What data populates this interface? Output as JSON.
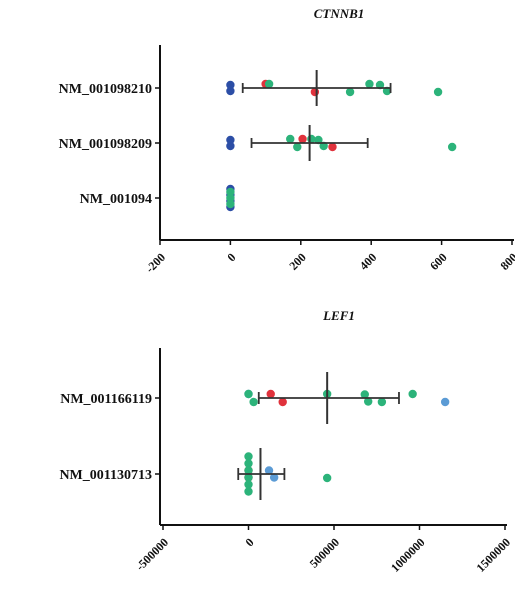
{
  "chart_data": [
    {
      "type": "scatter",
      "title": "CTNNB1",
      "xlabel": "",
      "ylabel": "",
      "xlim": [
        -200,
        800
      ],
      "xticks": [
        "-200",
        "0",
        "200",
        "400",
        "600",
        "800"
      ],
      "categories": [
        "NM_001098210",
        "NM_001098209",
        "NM_001094"
      ],
      "summary": [
        {
          "category": "NM_001098210",
          "mean": 245,
          "low": 35,
          "high": 455
        },
        {
          "category": "NM_001098209",
          "mean": 225,
          "low": 60,
          "high": 390
        }
      ],
      "groups": [
        {
          "color": "#2c4ea6",
          "points": [
            [
              "NM_001098210",
              0
            ],
            [
              "NM_001098210",
              0
            ],
            [
              "NM_001098209",
              0
            ],
            [
              "NM_001098209",
              0
            ],
            [
              "NM_001094",
              0
            ],
            [
              "NM_001094",
              0
            ],
            [
              "NM_001094",
              0
            ],
            [
              "NM_001094",
              0
            ]
          ]
        },
        {
          "color": "#e0323c",
          "points": [
            [
              "NM_001098210",
              100
            ],
            [
              "NM_001098210",
              240
            ],
            [
              "NM_001098209",
              205
            ],
            [
              "NM_001098209",
              290
            ]
          ]
        },
        {
          "color": "#2cb37a",
          "points": [
            [
              "NM_001098210",
              110
            ],
            [
              "NM_001098210",
              340
            ],
            [
              "NM_001098210",
              395
            ],
            [
              "NM_001098210",
              425
            ],
            [
              "NM_001098210",
              445
            ],
            [
              "NM_001098210",
              590
            ],
            [
              "NM_001098209",
              170
            ],
            [
              "NM_001098209",
              190
            ],
            [
              "NM_001098209",
              230
            ],
            [
              "NM_001098209",
              250
            ],
            [
              "NM_001098209",
              265
            ],
            [
              "NM_001098209",
              630
            ],
            [
              "NM_001094",
              0
            ],
            [
              "NM_001094",
              0
            ],
            [
              "NM_001094",
              0
            ]
          ]
        }
      ]
    },
    {
      "type": "scatter",
      "title": "LEF1",
      "xlabel": "",
      "ylabel": "",
      "xlim": [
        -500000,
        1500000
      ],
      "xticks": [
        "-500000",
        "0",
        "500000",
        "1000000",
        "1500000"
      ],
      "categories": [
        "NM_001166119",
        "NM_001130713"
      ],
      "summary": [
        {
          "category": "NM_001166119",
          "mean": 460000,
          "low": 60000,
          "high": 880000
        },
        {
          "category": "NM_001130713",
          "mean": 70000,
          "low": -60000,
          "high": 210000
        }
      ],
      "groups": [
        {
          "color": "#5b9bd5",
          "points": [
            [
              "NM_001166119",
              0
            ],
            [
              "NM_001166119",
              1150000
            ],
            [
              "NM_001130713",
              120000
            ],
            [
              "NM_001130713",
              150000
            ]
          ]
        },
        {
          "color": "#e0323c",
          "points": [
            [
              "NM_001166119",
              130000
            ],
            [
              "NM_001166119",
              200000
            ],
            [
              "NM_001130713",
              0
            ],
            [
              "NM_001130713",
              0
            ]
          ]
        },
        {
          "color": "#2cb37a",
          "points": [
            [
              "NM_001166119",
              0
            ],
            [
              "NM_001166119",
              30000
            ],
            [
              "NM_001166119",
              460000
            ],
            [
              "NM_001166119",
              680000
            ],
            [
              "NM_001166119",
              700000
            ],
            [
              "NM_001166119",
              780000
            ],
            [
              "NM_001166119",
              960000
            ],
            [
              "NM_001130713",
              0
            ],
            [
              "NM_001130713",
              0
            ],
            [
              "NM_001130713",
              0
            ],
            [
              "NM_001130713",
              0
            ],
            [
              "NM_001130713",
              0
            ],
            [
              "NM_001130713",
              0
            ],
            [
              "NM_001130713",
              460000
            ]
          ]
        }
      ]
    }
  ]
}
